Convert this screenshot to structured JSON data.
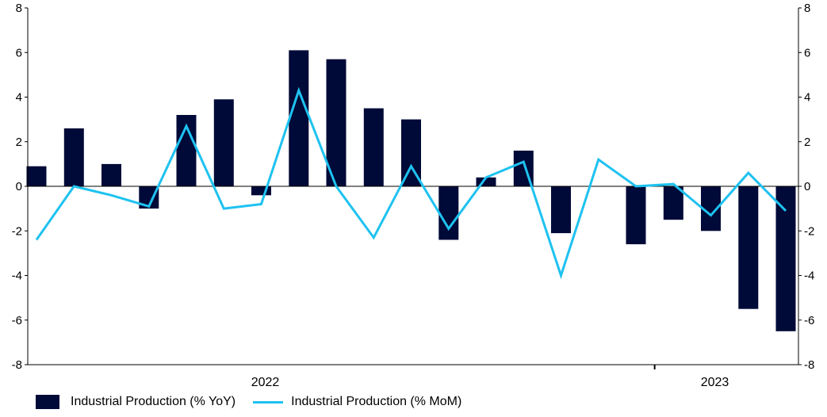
{
  "colors": {
    "bar": "#000a38",
    "line": "#1ec2f0",
    "axis": "#000000"
  },
  "chart_data": {
    "type": "bar",
    "x": [
      "2021-08",
      "2021-09",
      "2021-10",
      "2021-11",
      "2021-12",
      "2022-01",
      "2022-02",
      "2022-03",
      "2022-04",
      "2022-05",
      "2022-06",
      "2022-07",
      "2022-08",
      "2022-09",
      "2022-10",
      "2022-11",
      "2022-12",
      "2023-01",
      "2023-02",
      "2023-03",
      "2023-04",
      "2023-05"
    ],
    "series": [
      {
        "name": "Industrial Production (% YoY)",
        "kind": "bar",
        "values": [
          0.9,
          2.6,
          1.0,
          -1.0,
          3.2,
          3.9,
          -0.4,
          6.1,
          5.7,
          3.5,
          3.0,
          -2.4,
          0.4,
          1.6,
          -2.1,
          null,
          -2.6,
          -1.5,
          -2.0,
          -5.5,
          -6.5,
          null
        ]
      },
      {
        "name": "Industrial Production (% MoM)",
        "kind": "line",
        "values": [
          -2.4,
          0.0,
          -0.4,
          -0.9,
          2.7,
          -1.0,
          -0.8,
          4.3,
          0.0,
          -2.3,
          0.9,
          -1.9,
          0.4,
          1.1,
          -4.0,
          1.2,
          0.0,
          0.1,
          -1.3,
          0.6,
          -1.1,
          null
        ]
      }
    ],
    "ylim": [
      -8,
      8
    ],
    "yticks": [
      "-8",
      "-6",
      "-4",
      "-2",
      "0",
      "2",
      "4",
      "6",
      "8"
    ],
    "year_labels": [
      {
        "label": "2022",
        "month": "2022-02"
      },
      {
        "label": "2023",
        "month": "2023-02"
      }
    ],
    "legend_position": "bottom-left",
    "grid": false
  }
}
